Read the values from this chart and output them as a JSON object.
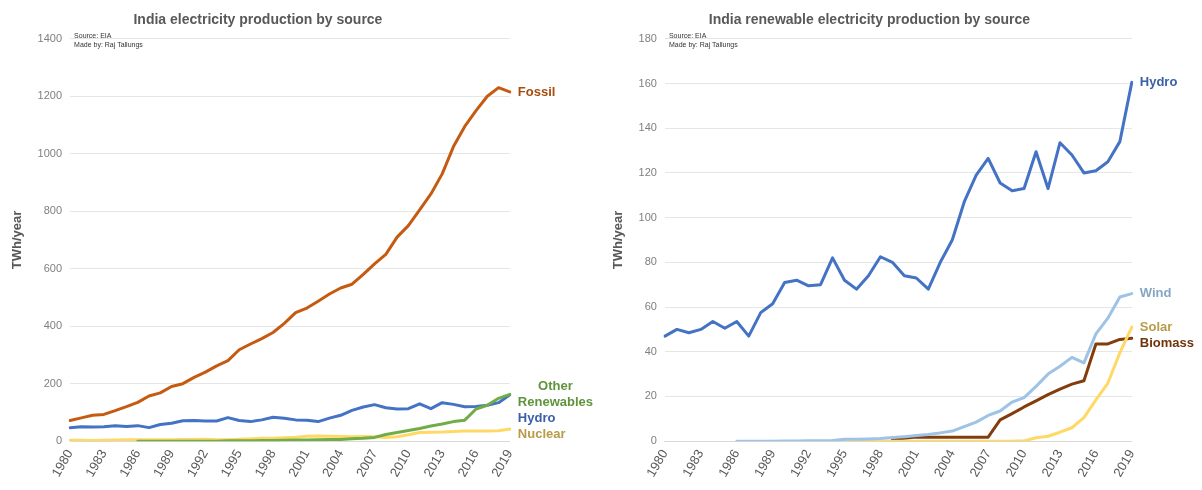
{
  "chart_data": [
    {
      "type": "line",
      "title": "India electricity production by source",
      "ylabel": "TWh/year",
      "annotations": [
        "Source: EIA",
        "Made by: Raj Tallungs"
      ],
      "categories": [
        "1980",
        null,
        null,
        "1983",
        null,
        null,
        "1986",
        null,
        null,
        "1989",
        null,
        null,
        "1992",
        null,
        null,
        "1995",
        null,
        null,
        "1998",
        null,
        null,
        "2001",
        null,
        null,
        "2004",
        null,
        null,
        "2007",
        null,
        null,
        "2010",
        null,
        null,
        "2013",
        null,
        null,
        "2016",
        null,
        null,
        "2019"
      ],
      "ylim": [
        0,
        1400
      ],
      "yticks": [
        0,
        200,
        400,
        600,
        800,
        1000,
        1200,
        1400
      ],
      "grid": "y",
      "legend": false,
      "series": [
        {
          "name": "Fossil",
          "color": "#c55a11",
          "values": [
            72,
            81,
            90,
            93,
            106,
            120,
            135,
            157,
            168,
            190,
            200,
            222,
            240,
            262,
            280,
            318,
            338,
            357,
            378,
            410,
            447,
            463,
            487,
            512,
            533,
            546,
            580,
            617,
            650,
            710,
            750,
            805,
            860,
            930,
            1025,
            1095,
            1150,
            1200,
            1230,
            1215
          ]
        },
        {
          "name": "Other Renewables",
          "color": "#70ad47",
          "values": [
            null,
            null,
            null,
            null,
            null,
            null,
            0,
            0,
            0,
            0,
            0,
            0,
            0,
            0,
            1,
            1,
            1,
            2,
            2,
            3,
            4,
            4,
            5,
            6,
            6,
            8,
            10,
            13,
            23,
            30,
            37,
            44,
            53,
            60,
            68,
            73,
            112,
            125,
            149,
            163
          ]
        },
        {
          "name": "Hydro",
          "color": "#4472c4",
          "values": [
            47,
            50,
            49,
            50,
            54,
            51,
            54,
            47,
            58,
            62,
            71,
            72,
            70,
            70,
            82,
            72,
            68,
            74,
            83,
            80,
            74,
            73,
            68,
            80,
            90,
            107,
            119,
            127,
            116,
            112,
            113,
            130,
            113,
            134,
            128,
            120,
            121,
            125,
            134,
            161
          ]
        },
        {
          "name": "Nuclear",
          "color": "#ffd966",
          "values": [
            3,
            3,
            2,
            3,
            4,
            5,
            5,
            5,
            5,
            5,
            6,
            6,
            7,
            5,
            5,
            7,
            8,
            10,
            10,
            12,
            14,
            17,
            18,
            17,
            16,
            15,
            16,
            15,
            13,
            15,
            22,
            30,
            31,
            32,
            34,
            35,
            35,
            35,
            36,
            42
          ]
        }
      ]
    },
    {
      "type": "line",
      "title": "India renewable electricity production by source",
      "ylabel": "TWh/year",
      "annotations": [
        "Source: EIA",
        "Made by: Raj Tallungs"
      ],
      "categories": [
        "1980",
        null,
        null,
        "1983",
        null,
        null,
        "1986",
        null,
        null,
        "1989",
        null,
        null,
        "1992",
        null,
        null,
        "1995",
        null,
        null,
        "1998",
        null,
        null,
        "2001",
        null,
        null,
        "2004",
        null,
        null,
        "2007",
        null,
        null,
        "2010",
        null,
        null,
        "2013",
        null,
        null,
        "2016",
        null,
        null,
        "2019"
      ],
      "ylim": [
        0,
        180
      ],
      "yticks": [
        0,
        20,
        40,
        60,
        80,
        100,
        120,
        140,
        160,
        180
      ],
      "grid": "y",
      "legend": false,
      "series": [
        {
          "name": "Hydro",
          "color": "#4472c4",
          "values": [
            47,
            50,
            48.5,
            50,
            53.5,
            50.5,
            53.5,
            47,
            57.5,
            61.5,
            71,
            72,
            69.5,
            70,
            82,
            72,
            68,
            74,
            82.5,
            80,
            74,
            73,
            68,
            80,
            90,
            107,
            119,
            126.5,
            115.5,
            112,
            113,
            129.5,
            113,
            133.5,
            128,
            120,
            121,
            125,
            134,
            160.5
          ]
        },
        {
          "name": "Wind",
          "color": "#9dc3e6",
          "values": [
            null,
            null,
            null,
            null,
            null,
            null,
            0,
            0,
            0,
            0,
            0.1,
            0.1,
            0.2,
            0.2,
            0.3,
            0.8,
            0.9,
            1,
            1.2,
            1.6,
            2,
            2.5,
            3,
            3.7,
            4.5,
            6.5,
            8.5,
            11.5,
            13.5,
            17.5,
            19.5,
            24.5,
            30,
            33.5,
            37.5,
            35,
            48,
            55,
            64.5,
            66
          ]
        },
        {
          "name": "Solar",
          "color": "#ffd966",
          "values": [
            null,
            null,
            null,
            null,
            null,
            null,
            null,
            null,
            null,
            null,
            null,
            null,
            null,
            null,
            null,
            0,
            0,
            0,
            0,
            0,
            0,
            0,
            0,
            0,
            0,
            0,
            0,
            0,
            0,
            0,
            0.1,
            1.5,
            2.2,
            4,
            6,
            10.5,
            18.5,
            26,
            39.5,
            51
          ]
        },
        {
          "name": "Biomass",
          "color": "#843c0c",
          "values": [
            null,
            null,
            null,
            null,
            null,
            null,
            null,
            null,
            null,
            null,
            null,
            null,
            null,
            null,
            null,
            null,
            null,
            null,
            null,
            0.8,
            1.3,
            1.8,
            1.8,
            1.8,
            1.8,
            1.8,
            1.8,
            1.8,
            9.5,
            12.3,
            15.3,
            18,
            20.8,
            23.3,
            25.5,
            27,
            43.5,
            43.5,
            45.5,
            46
          ]
        }
      ]
    }
  ]
}
